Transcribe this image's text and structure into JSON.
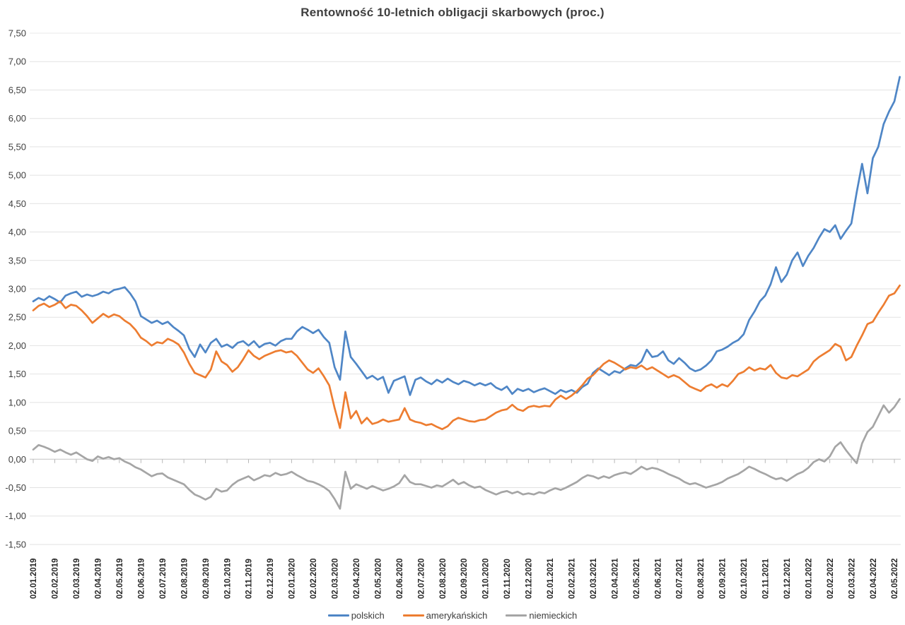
{
  "title": "Rentowność 10-letnich obligacji skarbowych (proc.)",
  "y_axis": {
    "ticks": [
      "7,50",
      "7,00",
      "6,50",
      "6,00",
      "5,50",
      "5,00",
      "4,50",
      "4,00",
      "3,50",
      "3,00",
      "2,50",
      "2,00",
      "1,50",
      "1,00",
      "0,50",
      "0,00",
      "-0,50",
      "-1,00",
      "-1,50"
    ],
    "max": 7.5,
    "min": -1.5,
    "step": 0.5
  },
  "x_axis": {
    "labels": [
      "02.01.2019",
      "02.02.2019",
      "02.03.2019",
      "02.04.2019",
      "02.05.2019",
      "02.06.2019",
      "02.07.2019",
      "02.08.2019",
      "02.09.2019",
      "02.10.2019",
      "02.11.2019",
      "02.12.2019",
      "02.01.2020",
      "02.02.2020",
      "02.03.2020",
      "02.04.2020",
      "02.05.2020",
      "02.06.2020",
      "02.07.2020",
      "02.08.2020",
      "02.09.2020",
      "02.10.2020",
      "02.11.2020",
      "02.12.2020",
      "02.01.2021",
      "02.02.2021",
      "02.03.2021",
      "02.04.2021",
      "02.05.2021",
      "02.06.2021",
      "02.07.2021",
      "02.08.2021",
      "02.09.2021",
      "02.10.2021",
      "02.11.2021",
      "02.12.2021",
      "02.01.2022",
      "02.02.2022",
      "02.03.2022",
      "02.04.2022",
      "02.05.2022"
    ]
  },
  "legend": [
    {
      "label": "polskich",
      "color": "#4F86C6"
    },
    {
      "label": "amerykańskich",
      "color": "#ED7D31"
    },
    {
      "label": "niemieckich",
      "color": "#A5A5A5"
    }
  ],
  "chart_data": {
    "type": "line",
    "title": "Rentowność 10-letnich obligacji skarbowych (proc.)",
    "xlabel": "",
    "ylabel": "",
    "x_start_label": "02.01.2019",
    "x_unit": "months since 02.01.2019",
    "t0": 0,
    "dt": 0.25,
    "ylim": [
      -1.5,
      7.5
    ],
    "grid": true,
    "legend_position": "bottom",
    "series": [
      {
        "name": "polskich",
        "color": "#4F86C6",
        "values": [
          2.78,
          2.84,
          2.8,
          2.87,
          2.82,
          2.76,
          2.88,
          2.92,
          2.95,
          2.86,
          2.9,
          2.87,
          2.9,
          2.95,
          2.92,
          2.98,
          3.0,
          3.03,
          2.92,
          2.78,
          2.52,
          2.46,
          2.4,
          2.44,
          2.38,
          2.42,
          2.33,
          2.26,
          2.18,
          1.94,
          1.8,
          2.02,
          1.88,
          2.05,
          2.12,
          1.98,
          2.02,
          1.96,
          2.05,
          2.08,
          2.0,
          2.08,
          1.97,
          2.03,
          2.05,
          2.0,
          2.08,
          2.12,
          2.12,
          2.25,
          2.33,
          2.28,
          2.22,
          2.28,
          2.15,
          2.05,
          1.62,
          1.4,
          2.25,
          1.8,
          1.68,
          1.55,
          1.42,
          1.47,
          1.4,
          1.45,
          1.17,
          1.38,
          1.42,
          1.46,
          1.13,
          1.4,
          1.44,
          1.37,
          1.32,
          1.4,
          1.35,
          1.42,
          1.36,
          1.32,
          1.38,
          1.35,
          1.3,
          1.34,
          1.3,
          1.34,
          1.26,
          1.22,
          1.28,
          1.15,
          1.24,
          1.2,
          1.24,
          1.18,
          1.22,
          1.25,
          1.2,
          1.15,
          1.22,
          1.18,
          1.22,
          1.17,
          1.27,
          1.33,
          1.52,
          1.6,
          1.54,
          1.48,
          1.55,
          1.52,
          1.6,
          1.66,
          1.64,
          1.72,
          1.93,
          1.8,
          1.82,
          1.9,
          1.74,
          1.68,
          1.78,
          1.7,
          1.6,
          1.55,
          1.58,
          1.65,
          1.74,
          1.9,
          1.93,
          1.98,
          2.05,
          2.1,
          2.2,
          2.45,
          2.6,
          2.78,
          2.88,
          3.08,
          3.38,
          3.12,
          3.25,
          3.5,
          3.64,
          3.4,
          3.58,
          3.72,
          3.9,
          4.05,
          4.0,
          4.12,
          3.88,
          4.02,
          4.15,
          4.7,
          5.2,
          4.68,
          5.3,
          5.5,
          5.9,
          6.12,
          6.3,
          6.73
        ]
      },
      {
        "name": "amerykańskich",
        "color": "#ED7D31",
        "values": [
          2.62,
          2.7,
          2.74,
          2.68,
          2.72,
          2.78,
          2.66,
          2.72,
          2.7,
          2.62,
          2.52,
          2.4,
          2.48,
          2.56,
          2.5,
          2.55,
          2.52,
          2.44,
          2.38,
          2.28,
          2.14,
          2.08,
          2.0,
          2.06,
          2.04,
          2.12,
          2.08,
          2.02,
          1.88,
          1.68,
          1.52,
          1.48,
          1.44,
          1.58,
          1.9,
          1.72,
          1.66,
          1.54,
          1.62,
          1.76,
          1.92,
          1.82,
          1.76,
          1.82,
          1.86,
          1.9,
          1.92,
          1.88,
          1.9,
          1.82,
          1.7,
          1.58,
          1.52,
          1.6,
          1.46,
          1.3,
          0.9,
          0.55,
          1.18,
          0.72,
          0.85,
          0.63,
          0.73,
          0.62,
          0.65,
          0.7,
          0.66,
          0.68,
          0.7,
          0.9,
          0.7,
          0.66,
          0.64,
          0.6,
          0.62,
          0.57,
          0.53,
          0.58,
          0.68,
          0.73,
          0.7,
          0.67,
          0.66,
          0.69,
          0.7,
          0.76,
          0.82,
          0.86,
          0.88,
          0.96,
          0.88,
          0.85,
          0.92,
          0.94,
          0.92,
          0.94,
          0.93,
          1.05,
          1.12,
          1.06,
          1.12,
          1.2,
          1.3,
          1.42,
          1.48,
          1.58,
          1.68,
          1.74,
          1.7,
          1.64,
          1.58,
          1.62,
          1.6,
          1.65,
          1.58,
          1.62,
          1.56,
          1.5,
          1.44,
          1.48,
          1.44,
          1.36,
          1.28,
          1.24,
          1.2,
          1.28,
          1.32,
          1.26,
          1.32,
          1.28,
          1.38,
          1.5,
          1.54,
          1.62,
          1.56,
          1.6,
          1.58,
          1.66,
          1.52,
          1.44,
          1.42,
          1.48,
          1.46,
          1.52,
          1.58,
          1.72,
          1.8,
          1.86,
          1.92,
          2.03,
          1.98,
          1.74,
          1.8,
          2.0,
          2.18,
          2.38,
          2.42,
          2.58,
          2.72,
          2.88,
          2.92,
          3.06
        ]
      },
      {
        "name": "niemieckich",
        "color": "#A5A5A5",
        "values": [
          0.17,
          0.25,
          0.22,
          0.18,
          0.13,
          0.17,
          0.12,
          0.08,
          0.12,
          0.06,
          0.0,
          -0.03,
          0.05,
          0.01,
          0.04,
          0.0,
          0.02,
          -0.04,
          -0.08,
          -0.14,
          -0.18,
          -0.24,
          -0.3,
          -0.26,
          -0.25,
          -0.32,
          -0.36,
          -0.4,
          -0.44,
          -0.54,
          -0.62,
          -0.66,
          -0.71,
          -0.66,
          -0.52,
          -0.57,
          -0.55,
          -0.45,
          -0.38,
          -0.34,
          -0.3,
          -0.37,
          -0.33,
          -0.28,
          -0.3,
          -0.24,
          -0.28,
          -0.26,
          -0.22,
          -0.28,
          -0.33,
          -0.38,
          -0.4,
          -0.44,
          -0.49,
          -0.56,
          -0.7,
          -0.87,
          -0.22,
          -0.52,
          -0.44,
          -0.48,
          -0.52,
          -0.47,
          -0.51,
          -0.55,
          -0.52,
          -0.48,
          -0.42,
          -0.28,
          -0.4,
          -0.44,
          -0.44,
          -0.47,
          -0.5,
          -0.46,
          -0.48,
          -0.42,
          -0.36,
          -0.44,
          -0.4,
          -0.46,
          -0.5,
          -0.48,
          -0.54,
          -0.58,
          -0.62,
          -0.58,
          -0.56,
          -0.6,
          -0.57,
          -0.62,
          -0.6,
          -0.62,
          -0.58,
          -0.6,
          -0.55,
          -0.51,
          -0.54,
          -0.5,
          -0.45,
          -0.4,
          -0.33,
          -0.28,
          -0.3,
          -0.34,
          -0.3,
          -0.33,
          -0.28,
          -0.25,
          -0.23,
          -0.26,
          -0.2,
          -0.13,
          -0.18,
          -0.15,
          -0.17,
          -0.21,
          -0.26,
          -0.3,
          -0.34,
          -0.4,
          -0.44,
          -0.42,
          -0.46,
          -0.5,
          -0.47,
          -0.44,
          -0.4,
          -0.34,
          -0.3,
          -0.26,
          -0.2,
          -0.13,
          -0.17,
          -0.22,
          -0.26,
          -0.31,
          -0.35,
          -0.33,
          -0.38,
          -0.32,
          -0.26,
          -0.22,
          -0.15,
          -0.05,
          0.0,
          -0.04,
          0.05,
          0.22,
          0.3,
          0.16,
          0.04,
          -0.07,
          0.28,
          0.48,
          0.57,
          0.76,
          0.95,
          0.82,
          0.92,
          1.06
        ]
      }
    ]
  }
}
